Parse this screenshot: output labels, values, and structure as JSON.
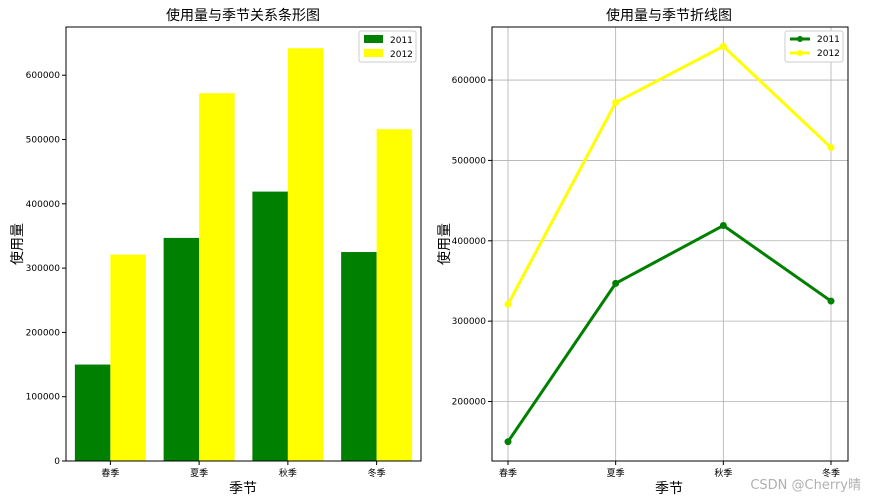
{
  "chart_data": [
    {
      "type": "bar",
      "title": "使用量与季节关系条形图",
      "xlabel": "季节",
      "ylabel": "使用量",
      "categories": [
        "春季",
        "夏季",
        "秋季",
        "冬季"
      ],
      "series": [
        {
          "name": "2011",
          "color": "#008000",
          "values": [
            150000,
            347000,
            419000,
            325000
          ]
        },
        {
          "name": "2012",
          "color": "#ffff00",
          "values": [
            321000,
            572000,
            642000,
            516000
          ]
        }
      ],
      "ylim": [
        0,
        675000
      ],
      "yticks": [
        0,
        100000,
        200000,
        300000,
        400000,
        500000,
        600000
      ],
      "grid": false,
      "legend": "top-right"
    },
    {
      "type": "line",
      "title": "使用量与季节折线图",
      "xlabel": "季节",
      "ylabel": "使用量",
      "categories": [
        "春季",
        "夏季",
        "秋季",
        "冬季"
      ],
      "series": [
        {
          "name": "2011",
          "color": "#008000",
          "values": [
            150000,
            347000,
            419000,
            325000
          ]
        },
        {
          "name": "2012",
          "color": "#ffff00",
          "values": [
            321000,
            572000,
            642000,
            516000
          ]
        }
      ],
      "ylim": [
        126000,
        666000
      ],
      "yticks": [
        200000,
        300000,
        400000,
        500000,
        600000
      ],
      "grid": true,
      "legend": "top-right"
    }
  ],
  "watermark": "CSDN @Cherry晴"
}
